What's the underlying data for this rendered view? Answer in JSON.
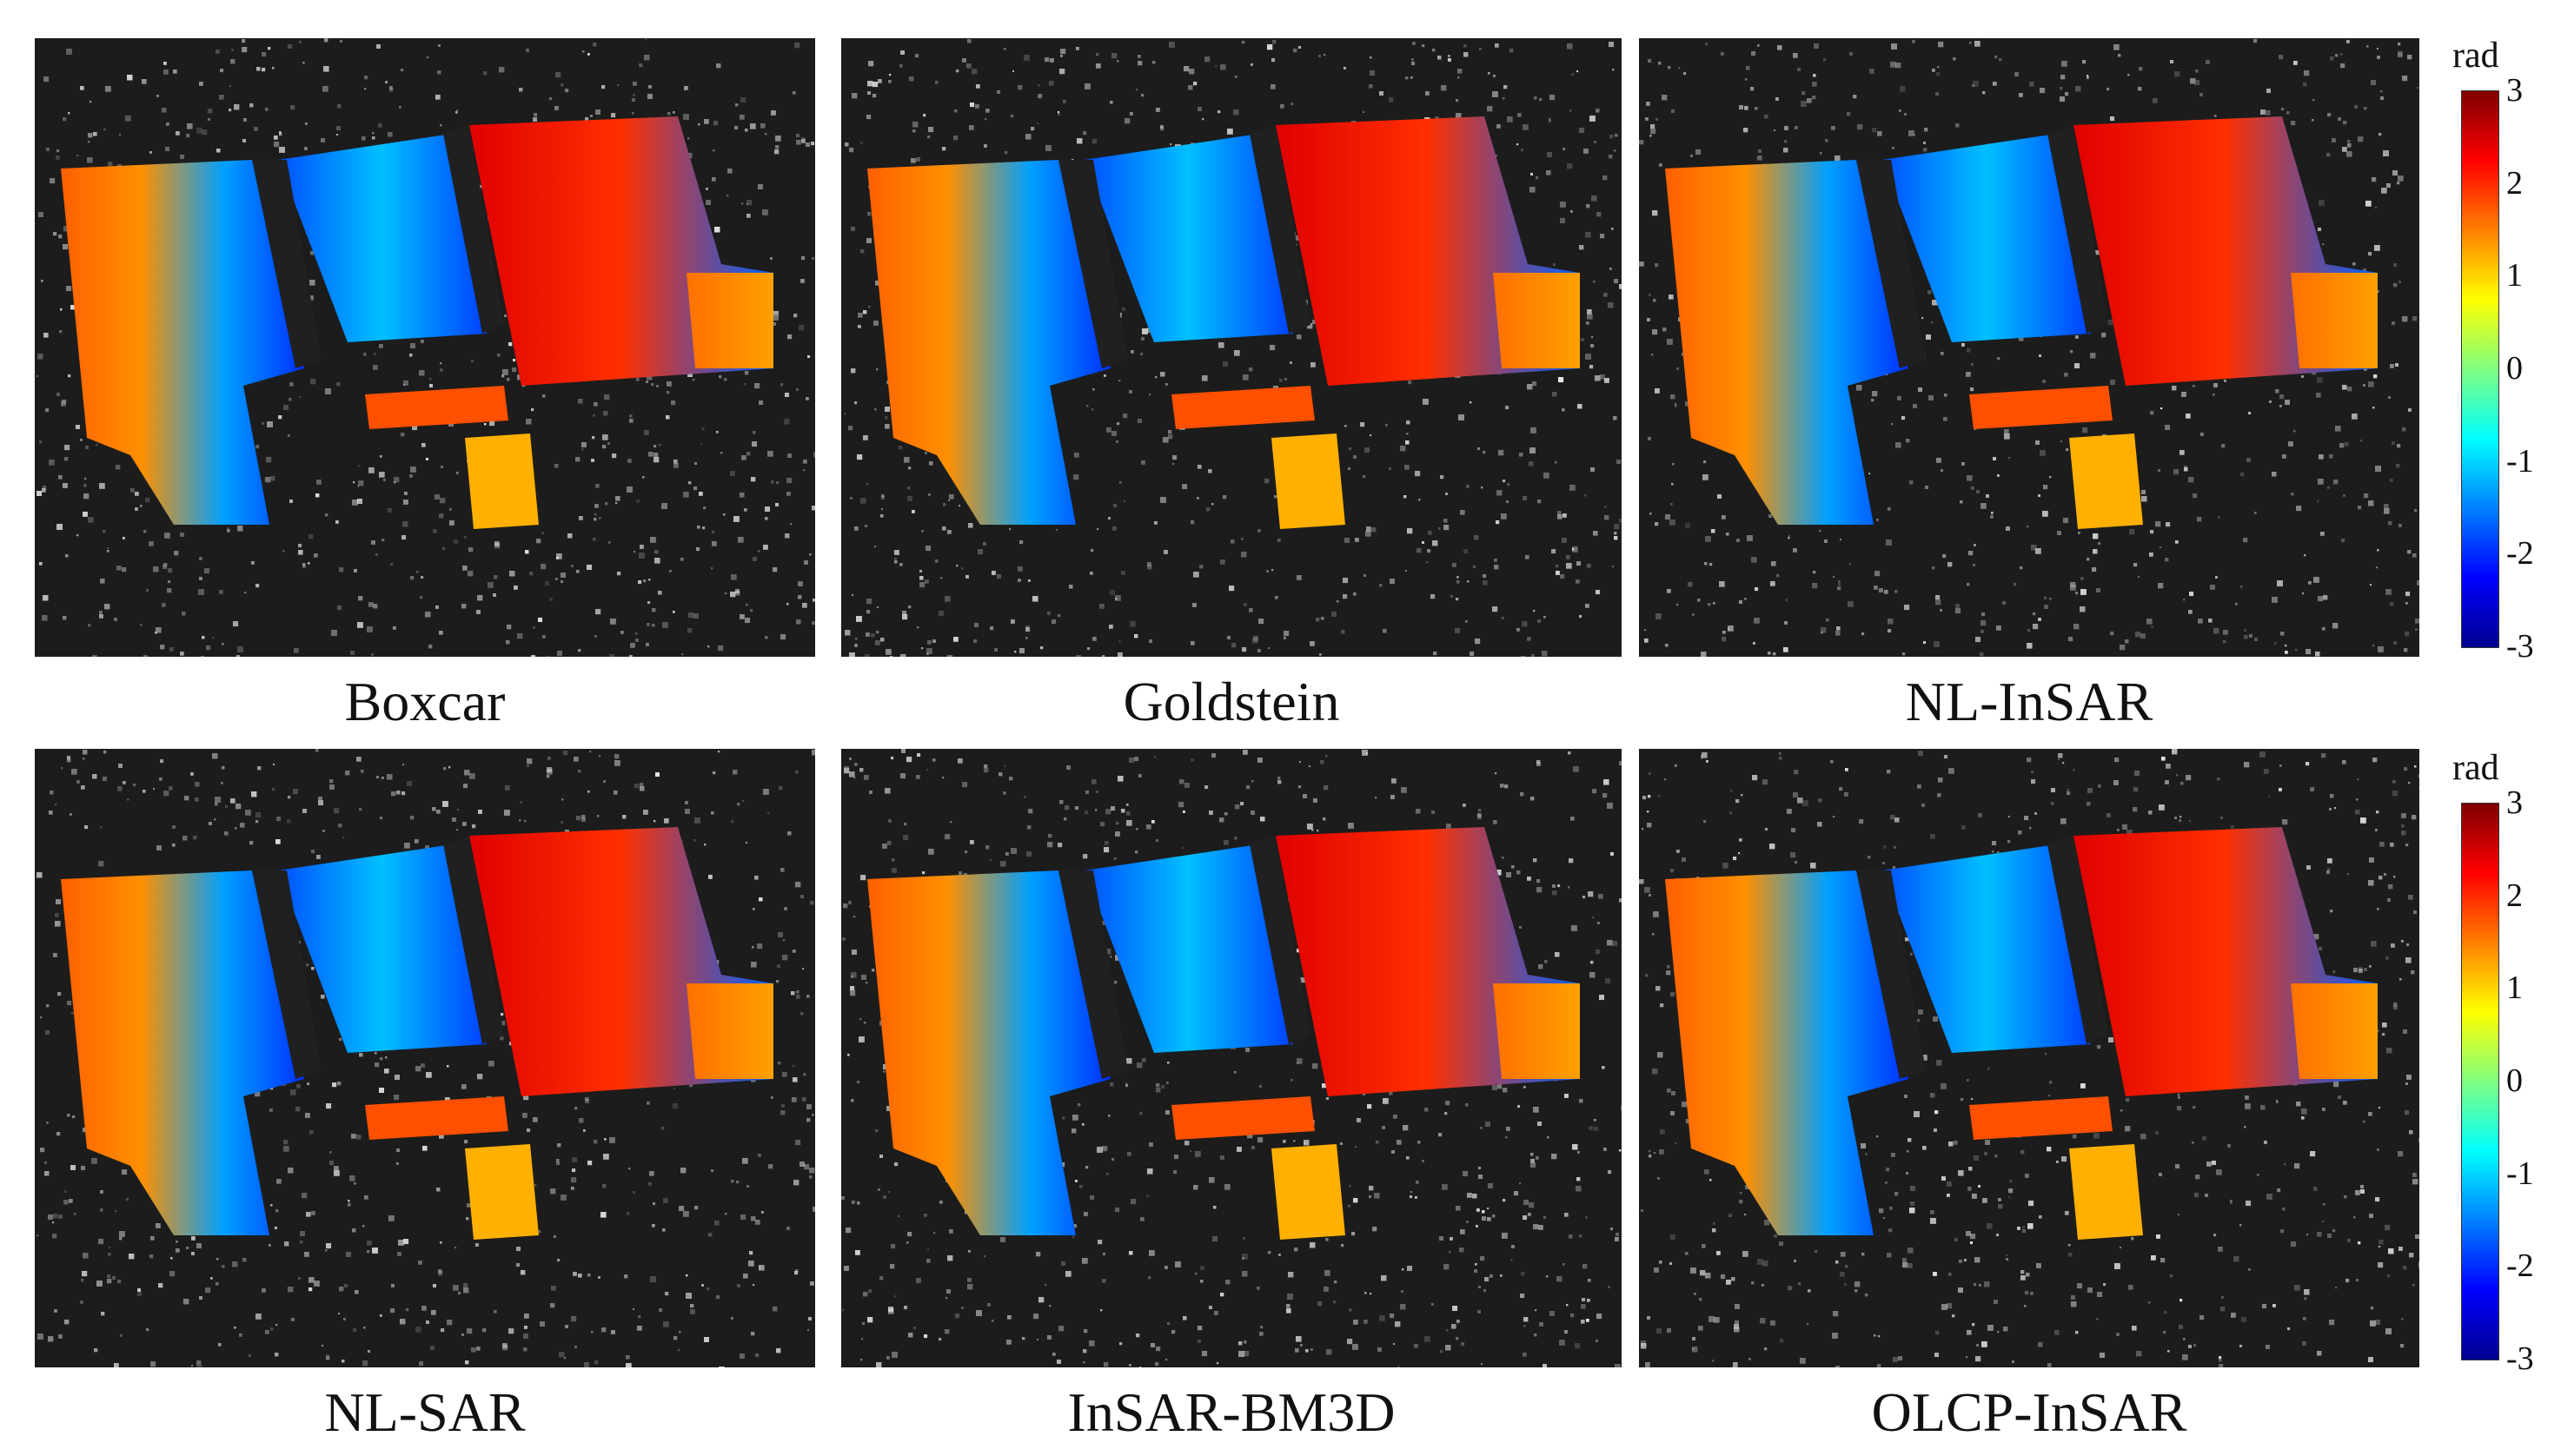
{
  "panels": [
    {
      "label": "Boxcar"
    },
    {
      "label": "Goldstein"
    },
    {
      "label": "NL-InSAR"
    },
    {
      "label": "NL-SAR"
    },
    {
      "label": "InSAR-BM3D"
    },
    {
      "label": "OLCP-InSAR"
    }
  ],
  "colorbar": {
    "unit": "rad",
    "ticks": [
      "3",
      "2",
      "1",
      "0",
      "-1",
      "-2",
      "-3"
    ],
    "colors": {
      "min": "#00008f",
      "mid": "#80ff80",
      "max": "#800000"
    }
  }
}
